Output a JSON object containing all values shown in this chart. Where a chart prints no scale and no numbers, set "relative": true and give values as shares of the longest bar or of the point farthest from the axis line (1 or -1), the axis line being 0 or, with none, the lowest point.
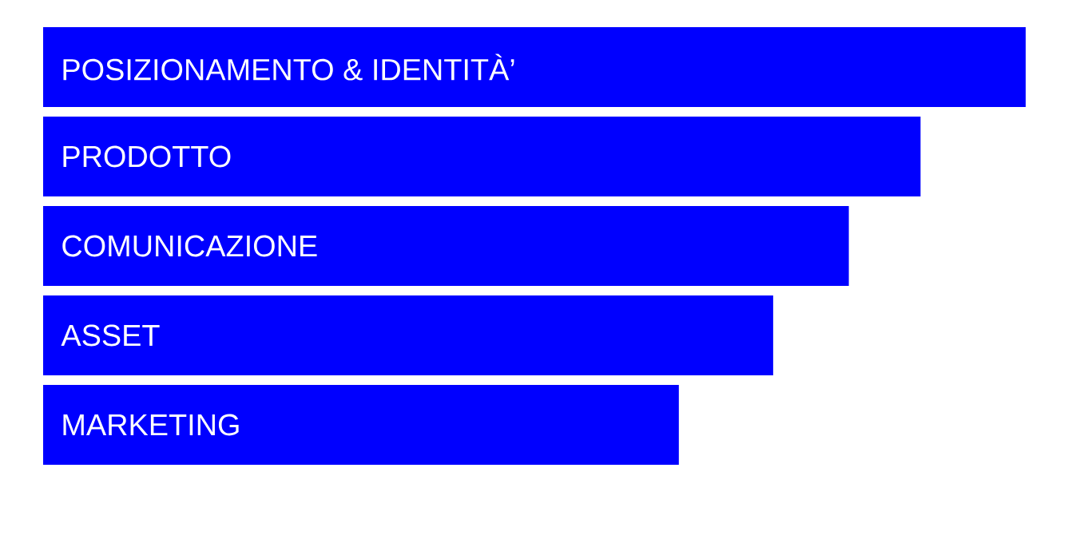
{
  "chart_data": {
    "type": "bar",
    "orientation": "horizontal",
    "relative": true,
    "color": "#0000ff",
    "categories": [
      "POSIZIONAMENTO & IDENTITÀ’",
      "PRODOTTO",
      "COMUNICAZIONE",
      "ASSET",
      "MARKETING"
    ],
    "values": [
      1,
      0.893,
      0.82,
      0.743,
      0.647
    ]
  }
}
